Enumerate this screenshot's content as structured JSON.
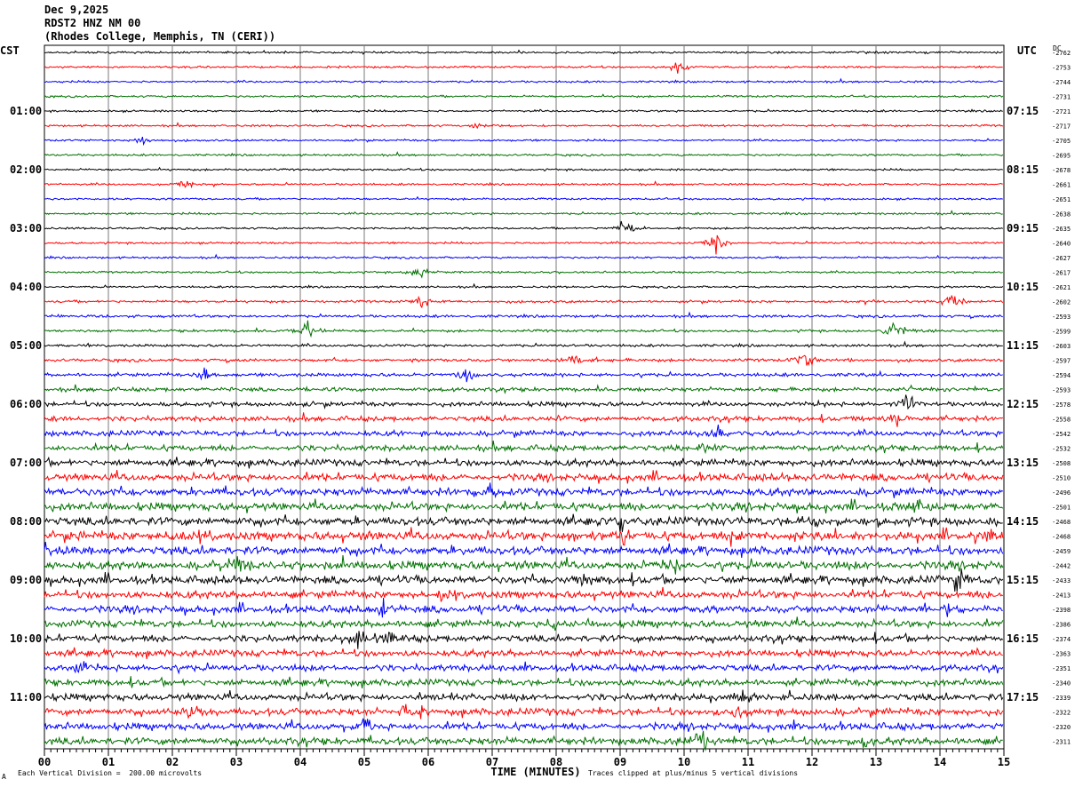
{
  "header": {
    "date": "Dec 9,2025",
    "station": "RDST2 HNZ NM 00",
    "location": "(Rhodes College, Memphis, TN (CERI))"
  },
  "left_timezone": "CST",
  "right_timezone": "UTC",
  "dc_label": "DC",
  "footer": {
    "scale": "Each Vertical Division =  200.00 microvolts",
    "clip": "Traces clipped at plus/minus 5 vertical divisions",
    "small_mark": "A"
  },
  "chart_data": {
    "type": "line",
    "title": "RDST2 HNZ NM 00",
    "xlabel": "TIME (MINUTES)",
    "ylabel": "",
    "x_ticks": [
      "00",
      "01",
      "02",
      "03",
      "04",
      "05",
      "06",
      "07",
      "08",
      "09",
      "10",
      "11",
      "12",
      "13",
      "14",
      "15"
    ],
    "xlim": [
      0,
      15
    ],
    "grid": true,
    "trace_colors": [
      "#000000",
      "#ff0000",
      "#0000ff",
      "#007000"
    ],
    "left_hour_labels": [
      "01:00",
      "02:00",
      "03:00",
      "04:00",
      "05:00",
      "06:00",
      "07:00",
      "08:00",
      "09:00",
      "10:00",
      "11:00"
    ],
    "right_hour_labels": [
      "07:15",
      "08:15",
      "09:15",
      "10:15",
      "11:15",
      "12:15",
      "13:15",
      "14:15",
      "15:15",
      "16:15",
      "17:15"
    ],
    "dc_offsets": [
      -2762,
      -2753,
      -2744,
      -2731,
      -2721,
      -2717,
      -2705,
      -2695,
      -2678,
      -2661,
      -2651,
      -2638,
      -2635,
      -2640,
      -2627,
      -2617,
      -2621,
      -2602,
      -2593,
      -2599,
      -2603,
      -2597,
      -2594,
      -2593,
      -2578,
      -2558,
      -2542,
      -2532,
      -2508,
      -2510,
      -2496,
      -2501,
      -2468,
      -2468,
      -2459,
      -2442,
      -2433,
      -2413,
      -2398,
      -2386,
      -2374,
      -2363,
      -2351,
      -2340,
      -2339,
      -2322,
      -2320,
      -2311
    ],
    "trace_noise_level": [
      1,
      1,
      1,
      1,
      1,
      1,
      1,
      1,
      1,
      1,
      1,
      1,
      1,
      1,
      1,
      1,
      1,
      1.2,
      1.3,
      1.3,
      1.3,
      1.5,
      1.7,
      1.9,
      2.2,
      2.4,
      2.6,
      2.8,
      3.2,
      3.5,
      3.7,
      3.8,
      4,
      4.2,
      4,
      4,
      3.8,
      3.6,
      3.5,
      3.4,
      3.3,
      3.2,
      3.1,
      3.2,
      3.3,
      3.4,
      3.4,
      3.5
    ],
    "events": [
      {
        "trace": 1,
        "minute": 9.9,
        "amp": 6
      },
      {
        "trace": 5,
        "minute": 6.8,
        "amp": 5
      },
      {
        "trace": 6,
        "minute": 1.5,
        "amp": 4
      },
      {
        "trace": 9,
        "minute": 2.2,
        "amp": 4
      },
      {
        "trace": 12,
        "minute": 9.1,
        "amp": 10
      },
      {
        "trace": 13,
        "minute": 10.5,
        "amp": 9
      },
      {
        "trace": 15,
        "minute": 5.9,
        "amp": 8
      },
      {
        "trace": 17,
        "minute": 14.2,
        "amp": 10
      },
      {
        "trace": 17,
        "minute": 5.9,
        "amp": 6
      },
      {
        "trace": 19,
        "minute": 4.1,
        "amp": 11
      },
      {
        "trace": 19,
        "minute": 13.3,
        "amp": 9
      },
      {
        "trace": 21,
        "minute": 8.3,
        "amp": 7
      },
      {
        "trace": 21,
        "minute": 11.9,
        "amp": 11
      },
      {
        "trace": 22,
        "minute": 2.5,
        "amp": 6
      },
      {
        "trace": 22,
        "minute": 6.6,
        "amp": 7
      },
      {
        "trace": 24,
        "minute": 13.5,
        "amp": 10
      },
      {
        "trace": 25,
        "minute": 13.3,
        "amp": 9
      },
      {
        "trace": 26,
        "minute": 10.5,
        "amp": 7
      },
      {
        "trace": 27,
        "minute": 10.3,
        "amp": 7
      },
      {
        "trace": 30,
        "minute": 7.0,
        "amp": 8
      },
      {
        "trace": 31,
        "minute": 13.6,
        "amp": 9
      },
      {
        "trace": 32,
        "minute": 9.0,
        "amp": 9
      },
      {
        "trace": 32,
        "minute": 12.1,
        "amp": 7
      },
      {
        "trace": 33,
        "minute": 2.1,
        "amp": 9
      },
      {
        "trace": 33,
        "minute": 14.8,
        "amp": 8
      },
      {
        "trace": 35,
        "minute": 3.0,
        "amp": 8
      },
      {
        "trace": 35,
        "minute": 9.8,
        "amp": 9
      },
      {
        "trace": 36,
        "minute": 14.3,
        "amp": 12
      },
      {
        "trace": 36,
        "minute": 8.4,
        "amp": 7
      },
      {
        "trace": 37,
        "minute": 6.2,
        "amp": 8
      },
      {
        "trace": 38,
        "minute": 5.3,
        "amp": 8
      },
      {
        "trace": 38,
        "minute": 14.1,
        "amp": 7
      },
      {
        "trace": 39,
        "minute": 8.0,
        "amp": 8
      },
      {
        "trace": 40,
        "minute": 4.9,
        "amp": 9
      },
      {
        "trace": 40,
        "minute": 5.4,
        "amp": 9
      },
      {
        "trace": 42,
        "minute": 0.6,
        "amp": 8
      },
      {
        "trace": 44,
        "minute": 6.4,
        "amp": 7
      },
      {
        "trace": 44,
        "minute": 10.9,
        "amp": 7
      },
      {
        "trace": 45,
        "minute": 2.3,
        "amp": 9
      },
      {
        "trace": 45,
        "minute": 5.6,
        "amp": 9
      },
      {
        "trace": 45,
        "minute": 10.8,
        "amp": 8
      },
      {
        "trace": 46,
        "minute": 5.0,
        "amp": 8
      },
      {
        "trace": 47,
        "minute": 10.3,
        "amp": 9
      },
      {
        "trace": 47,
        "minute": 12.8,
        "amp": 8
      }
    ]
  }
}
